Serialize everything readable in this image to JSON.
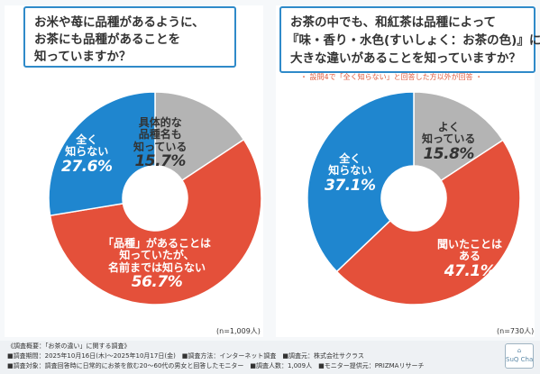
{
  "colors": {
    "red": "#e4503a",
    "blue": "#1f86cf",
    "gray": "#b4b4b4",
    "accent": "#2f8ac9"
  },
  "left": {
    "question": [
      "お米や苺に品種があるように、",
      "お茶にも品種があることを",
      "知っていますか？"
    ],
    "n_note": "(n=1,009人)"
  },
  "right": {
    "question": [
      "お茶の中でも、和紅茶は品種によって",
      "『味・香り・水色(すいしょく：お茶の色)』に",
      "大きな違いがあることを知っていますか？"
    ],
    "note": "・ 設問4で「全く知らない」と回答した方以外が回答 ・",
    "n_note": "(n=730人)"
  },
  "chart_data": [
    {
      "type": "pie",
      "title": "お米や苺に品種があるように、お茶にも品種があることを知っていますか？",
      "slices": [
        {
          "label": "具体的な品種名も知っている",
          "label_lines": [
            "具体的な",
            "品種名も",
            "知っている"
          ],
          "value": 15.7,
          "value_text": "15.7%",
          "color": "#b4b4b4"
        },
        {
          "label": "「品種」があることは知っていたが、名前までは知らない",
          "label_lines": [
            "「品種」があることは",
            "知っていたが、",
            "名前までは知らない"
          ],
          "value": 56.7,
          "value_text": "56.7%",
          "color": "#e4503a"
        },
        {
          "label": "全く知らない",
          "label_lines": [
            "全く",
            "知らない"
          ],
          "value": 27.6,
          "value_text": "27.6%",
          "color": "#1f86cf"
        }
      ]
    },
    {
      "type": "pie",
      "title": "お茶の中でも、和紅茶は品種によって『味・香り・水色(すいしょく：お茶の色)』に大きな違いがあることを知っていますか？",
      "slices": [
        {
          "label": "よく知っている",
          "label_lines": [
            "よく",
            "知っている"
          ],
          "value": 15.8,
          "value_text": "15.8%",
          "color": "#b4b4b4"
        },
        {
          "label": "聞いたことはある",
          "label_lines": [
            "聞いたことは",
            "ある"
          ],
          "value": 47.1,
          "value_text": "47.1%",
          "color": "#e4503a"
        },
        {
          "label": "全く知らない",
          "label_lines": [
            "全く",
            "知らない"
          ],
          "value": 37.1,
          "value_text": "37.1%",
          "color": "#1f86cf"
        }
      ]
    }
  ],
  "footer": {
    "line1": "《調査概要：「お茶の違い」に関する調査》",
    "line2": "■調査期間：2025年10月16日(木)～2025年10月17日(金)　■調査方法：インターネット調査　■調査元：株式会社サクラス",
    "line3": "■調査対象：調査回答時に日常的にお茶を飲む20～60代の男女と回答したモニター　■調査人数：1,009人　■モニター提供元：PRIZMAリサーチ",
    "logo": "SuQ Cha"
  }
}
